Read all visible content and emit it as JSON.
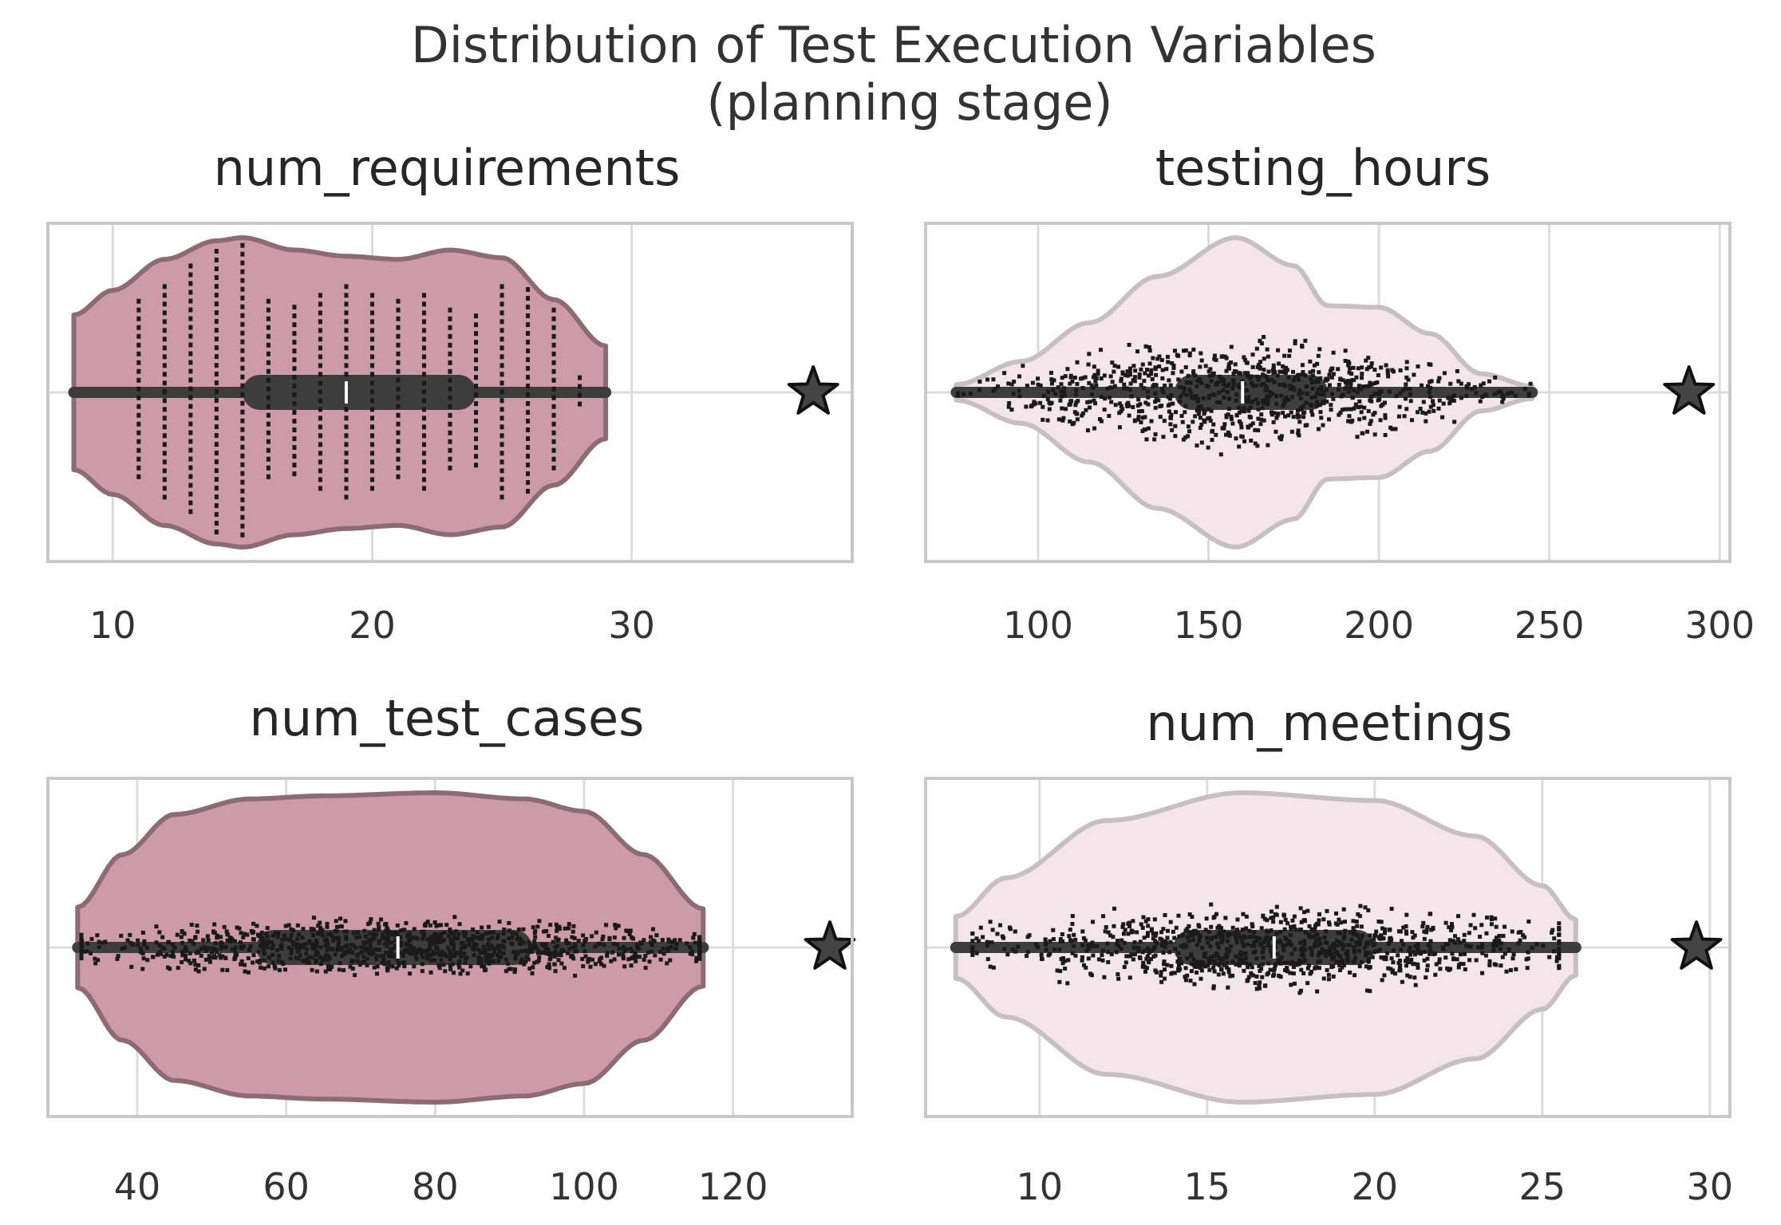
{
  "chart_data": {
    "type": "violin",
    "title_lines": [
      "Distribution of Test Execution Variables",
      "(planning stage)"
    ],
    "colors": {
      "dark_fill": "#cc9aa9",
      "dark_edge": "#8c6b75",
      "light_fill": "#f2e6ea",
      "light_edge": "#c8bfc2",
      "points": "#1a1a1a",
      "box": "#3d3d3d",
      "star": "#444444"
    },
    "panels": [
      {
        "title": "num_requirements",
        "style": "dark",
        "xlim": [
          7.5,
          38.5
        ],
        "xticks": [
          10,
          20,
          30
        ],
        "xtick_labels": [
          "10",
          "20",
          "30"
        ],
        "range": [
          8.5,
          29
        ],
        "density": [
          [
            8.5,
            0.5
          ],
          [
            10,
            0.66
          ],
          [
            12,
            0.86
          ],
          [
            14,
            0.98
          ],
          [
            15,
            1.0
          ],
          [
            17,
            0.92
          ],
          [
            19,
            0.88
          ],
          [
            21,
            0.86
          ],
          [
            23,
            0.92
          ],
          [
            25,
            0.87
          ],
          [
            27,
            0.6
          ],
          [
            29,
            0.3
          ]
        ],
        "quartiles": [
          15,
          24
        ],
        "median": 19,
        "star": 37,
        "point_mode": "columns",
        "columns": [
          [
            11,
            0.62
          ],
          [
            12,
            0.72
          ],
          [
            13,
            0.86
          ],
          [
            14,
            0.96
          ],
          [
            15,
            1.0
          ],
          [
            16,
            0.62
          ],
          [
            17,
            0.58
          ],
          [
            18,
            0.66
          ],
          [
            19,
            0.72
          ],
          [
            20,
            0.66
          ],
          [
            21,
            0.62
          ],
          [
            22,
            0.66
          ],
          [
            23,
            0.56
          ],
          [
            24,
            0.52
          ],
          [
            25,
            0.72
          ],
          [
            26,
            0.7
          ],
          [
            27,
            0.56
          ],
          [
            28,
            0.1
          ]
        ]
      },
      {
        "title": "testing_hours",
        "style": "light",
        "xlim": [
          67,
          303
        ],
        "xticks": [
          100,
          150,
          200,
          250,
          300
        ],
        "xtick_labels": [
          "100",
          "150",
          "200",
          "250",
          "300"
        ],
        "range": [
          76,
          245
        ],
        "density": [
          [
            76,
            0.05
          ],
          [
            95,
            0.2
          ],
          [
            115,
            0.45
          ],
          [
            135,
            0.75
          ],
          [
            158,
            1.0
          ],
          [
            175,
            0.82
          ],
          [
            185,
            0.56
          ],
          [
            200,
            0.55
          ],
          [
            215,
            0.38
          ],
          [
            230,
            0.12
          ],
          [
            245,
            0.04
          ]
        ],
        "quartiles": [
          140,
          185
        ],
        "median": 160,
        "star": 291,
        "point_mode": "swarm",
        "n_points": 900,
        "center": 160,
        "spread": 30,
        "spread_frac": 0.42
      },
      {
        "title": "num_test_cases",
        "style": "dark",
        "xlim": [
          28,
          136
        ],
        "xticks": [
          40,
          60,
          80,
          100,
          120
        ],
        "xtick_labels": [
          "40",
          "60",
          "80",
          "100",
          "120"
        ],
        "range": [
          32,
          116
        ],
        "density": [
          [
            32,
            0.26
          ],
          [
            38,
            0.6
          ],
          [
            45,
            0.86
          ],
          [
            55,
            0.96
          ],
          [
            65,
            0.98
          ],
          [
            80,
            1.0
          ],
          [
            92,
            0.96
          ],
          [
            100,
            0.88
          ],
          [
            108,
            0.6
          ],
          [
            116,
            0.25
          ]
        ],
        "quartiles": [
          56,
          93
        ],
        "median": 75,
        "star": 133,
        "point_mode": "swarm",
        "n_points": 1100,
        "center": 75,
        "spread": 20,
        "spread_frac": 0.2
      },
      {
        "title": "num_meetings",
        "style": "light",
        "xlim": [
          6.6,
          30.6
        ],
        "xticks": [
          10,
          15,
          20,
          25,
          30
        ],
        "xtick_labels": [
          "10",
          "15",
          "20",
          "25",
          "30"
        ],
        "range": [
          7.5,
          26
        ],
        "density": [
          [
            7.5,
            0.2
          ],
          [
            9,
            0.45
          ],
          [
            12,
            0.82
          ],
          [
            16,
            1.0
          ],
          [
            20,
            0.95
          ],
          [
            23,
            0.72
          ],
          [
            25,
            0.4
          ],
          [
            26,
            0.18
          ]
        ],
        "quartiles": [
          14,
          20
        ],
        "median": 17,
        "star": 29.6,
        "point_mode": "swarm",
        "n_points": 1000,
        "center": 17,
        "spread": 3.6,
        "spread_frac": 0.3
      }
    ]
  }
}
